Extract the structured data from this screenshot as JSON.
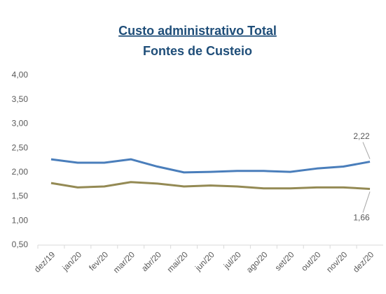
{
  "chart_data": {
    "type": "line",
    "title": "Custo administrativo Total",
    "subtitle": "Fontes de Custeio",
    "categories": [
      "dez/19",
      "jan/20",
      "fev/20",
      "mar/20",
      "abr/20",
      "mai/20",
      "jun/20",
      "jul/20",
      "ago/20",
      "set/20",
      "out/20",
      "nov/20",
      "dez/20"
    ],
    "series": [
      {
        "color": "#4a7ebb",
        "values": [
          2.27,
          2.2,
          2.2,
          2.27,
          2.12,
          2.0,
          2.01,
          2.03,
          2.03,
          2.01,
          2.08,
          2.12,
          2.22
        ],
        "value_labels": [
          null,
          null,
          null,
          null,
          null,
          null,
          null,
          null,
          null,
          null,
          null,
          null,
          "2,22"
        ]
      },
      {
        "color": "#948a54",
        "values": [
          1.78,
          1.69,
          1.71,
          1.8,
          1.77,
          1.71,
          1.73,
          1.71,
          1.67,
          1.67,
          1.69,
          1.69,
          1.66
        ],
        "value_labels": [
          null,
          null,
          null,
          null,
          null,
          null,
          null,
          null,
          null,
          null,
          null,
          null,
          "1,66"
        ]
      }
    ],
    "ylim": [
      0.5,
      4.0
    ],
    "yticks": [
      {
        "value": 0.5,
        "label": "0,50"
      },
      {
        "value": 1.0,
        "label": "1,00"
      },
      {
        "value": 1.5,
        "label": "1,50"
      },
      {
        "value": 2.0,
        "label": "2,00"
      },
      {
        "value": 2.5,
        "label": "2,50"
      },
      {
        "value": 3.0,
        "label": "3,00"
      },
      {
        "value": 3.5,
        "label": "3,50"
      },
      {
        "value": 4.0,
        "label": "4,00"
      }
    ],
    "grid": false
  }
}
